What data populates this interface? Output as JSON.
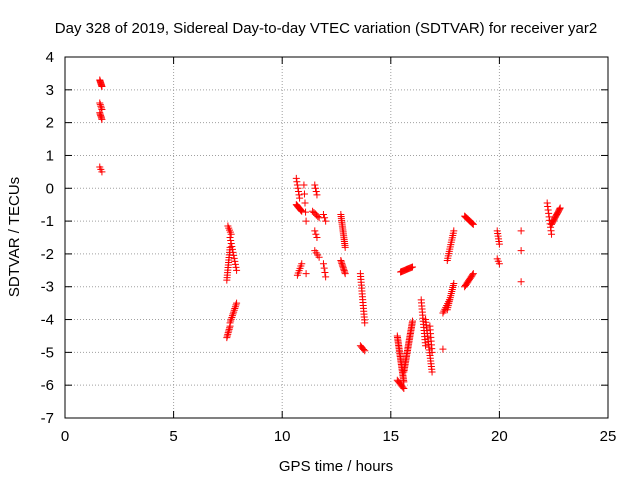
{
  "chart_data": {
    "type": "scatter",
    "title": "Day 328 of 2019, Sidereal Day-to-day VTEC variation (SDTVAR) for receiver yar2",
    "xlabel": "GPS time / hours",
    "ylabel": "SDTVAR / TECUs",
    "xlim": [
      0,
      25
    ],
    "ylim": [
      -7,
      4
    ],
    "xticks": [
      0,
      5,
      10,
      15,
      20,
      25
    ],
    "yticks": [
      -7,
      -6,
      -5,
      -4,
      -3,
      -2,
      -1,
      0,
      1,
      2,
      3,
      4
    ],
    "grid": true,
    "marker": "+",
    "color": "#ff0000",
    "segments": [
      {
        "t0": 1.6,
        "t1": 1.7,
        "y0": 3.3,
        "y1": 3.1,
        "n": 8
      },
      {
        "t0": 1.6,
        "t1": 1.7,
        "y0": 2.6,
        "y1": 2.4,
        "n": 5
      },
      {
        "t0": 1.6,
        "t1": 1.7,
        "y0": 2.3,
        "y1": 2.1,
        "n": 6
      },
      {
        "t0": 1.6,
        "t1": 1.7,
        "y0": 0.65,
        "y1": 0.5,
        "n": 3
      },
      {
        "t0": 7.45,
        "t1": 7.6,
        "y0": -2.8,
        "y1": -1.8,
        "n": 14
      },
      {
        "t0": 7.6,
        "t1": 7.9,
        "y0": -1.5,
        "y1": -2.5,
        "n": 12
      },
      {
        "t0": 7.5,
        "t1": 7.65,
        "y0": -1.15,
        "y1": -1.4,
        "n": 5
      },
      {
        "t0": 7.45,
        "t1": 7.6,
        "y0": -4.55,
        "y1": -4.2,
        "n": 8
      },
      {
        "t0": 7.6,
        "t1": 7.9,
        "y0": -4.1,
        "y1": -3.5,
        "n": 12
      },
      {
        "t0": 10.65,
        "t1": 10.8,
        "y0": 0.3,
        "y1": -0.3,
        "n": 7
      },
      {
        "t0": 10.65,
        "t1": 10.9,
        "y0": -0.5,
        "y1": -0.7,
        "n": 10
      },
      {
        "t0": 10.7,
        "t1": 10.9,
        "y0": -2.65,
        "y1": -2.3,
        "n": 6
      },
      {
        "t0": 11.0,
        "t1": 11.1,
        "y0": 0.1,
        "y1": -1.0,
        "n": 5
      },
      {
        "t0": 11.1,
        "t1": 11.1,
        "y0": -2.6,
        "y1": -2.6,
        "n": 1
      },
      {
        "t0": 11.5,
        "t1": 11.6,
        "y0": 0.1,
        "y1": -0.2,
        "n": 4
      },
      {
        "t0": 11.4,
        "t1": 11.7,
        "y0": -0.7,
        "y1": -0.9,
        "n": 6
      },
      {
        "t0": 11.5,
        "t1": 11.6,
        "y0": -1.3,
        "y1": -1.5,
        "n": 3
      },
      {
        "t0": 11.5,
        "t1": 11.7,
        "y0": -1.9,
        "y1": -2.1,
        "n": 4
      },
      {
        "t0": 11.9,
        "t1": 12.0,
        "y0": -0.8,
        "y1": -1.0,
        "n": 3
      },
      {
        "t0": 11.9,
        "t1": 12.0,
        "y0": -2.3,
        "y1": -2.7,
        "n": 4
      },
      {
        "t0": 12.7,
        "t1": 12.9,
        "y0": -0.8,
        "y1": -1.8,
        "n": 18
      },
      {
        "t0": 12.7,
        "t1": 12.9,
        "y0": -2.2,
        "y1": -2.6,
        "n": 10
      },
      {
        "t0": 13.6,
        "t1": 13.8,
        "y0": -2.6,
        "y1": -4.1,
        "n": 18
      },
      {
        "t0": 13.6,
        "t1": 13.8,
        "y0": -4.8,
        "y1": -4.95,
        "n": 5
      },
      {
        "t0": 15.3,
        "t1": 15.6,
        "y0": -5.85,
        "y1": -6.1,
        "n": 8
      },
      {
        "t0": 15.3,
        "t1": 15.6,
        "y0": -4.5,
        "y1": -5.9,
        "n": 30
      },
      {
        "t0": 15.6,
        "t1": 16.0,
        "y0": -5.6,
        "y1": -4.05,
        "n": 34
      },
      {
        "t0": 15.45,
        "t1": 16.0,
        "y0": -2.55,
        "y1": -2.4,
        "n": 14
      },
      {
        "t0": 16.4,
        "t1": 16.6,
        "y0": -3.4,
        "y1": -4.8,
        "n": 16
      },
      {
        "t0": 16.6,
        "t1": 16.9,
        "y0": -4.0,
        "y1": -5.6,
        "n": 20
      },
      {
        "t0": 16.8,
        "t1": 16.9,
        "y0": -4.2,
        "y1": -5.0,
        "n": 8
      },
      {
        "t0": 17.4,
        "t1": 17.4,
        "y0": -4.9,
        "y1": -4.9,
        "n": 1
      },
      {
        "t0": 17.4,
        "t1": 17.7,
        "y0": -3.8,
        "y1": -3.4,
        "n": 8
      },
      {
        "t0": 17.6,
        "t1": 17.9,
        "y0": -2.2,
        "y1": -1.3,
        "n": 14
      },
      {
        "t0": 17.6,
        "t1": 17.9,
        "y0": -3.7,
        "y1": -2.9,
        "n": 14
      },
      {
        "t0": 18.4,
        "t1": 18.8,
        "y0": -0.85,
        "y1": -1.1,
        "n": 12
      },
      {
        "t0": 18.4,
        "t1": 18.8,
        "y0": -3.0,
        "y1": -2.6,
        "n": 12
      },
      {
        "t0": 19.9,
        "t1": 20.0,
        "y0": -1.3,
        "y1": -1.7,
        "n": 6
      },
      {
        "t0": 19.9,
        "t1": 20.0,
        "y0": -2.15,
        "y1": -2.3,
        "n": 3
      },
      {
        "t0": 21.0,
        "t1": 21.0,
        "y0": -1.3,
        "y1": -1.3,
        "n": 1
      },
      {
        "t0": 21.0,
        "t1": 21.0,
        "y0": -1.9,
        "y1": -1.9,
        "n": 1
      },
      {
        "t0": 21.0,
        "t1": 21.0,
        "y0": -2.85,
        "y1": -2.85,
        "n": 1
      },
      {
        "t0": 22.2,
        "t1": 22.4,
        "y0": -0.45,
        "y1": -1.4,
        "n": 10
      },
      {
        "t0": 22.4,
        "t1": 22.8,
        "y0": -1.1,
        "y1": -0.6,
        "n": 16
      }
    ]
  }
}
